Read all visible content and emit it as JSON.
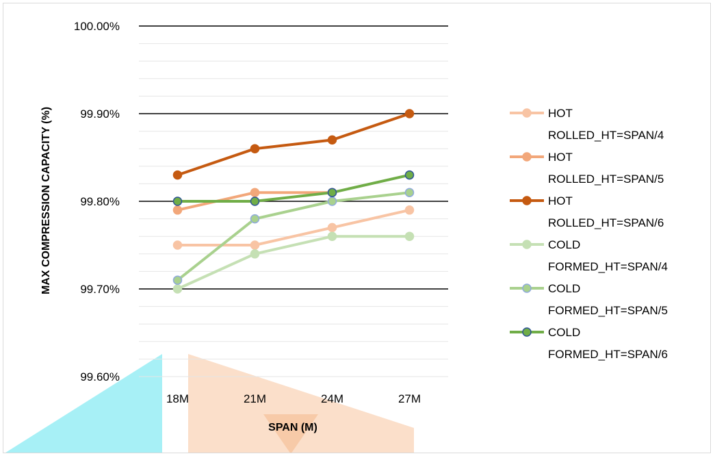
{
  "chart_data": {
    "type": "line",
    "title": "",
    "xlabel": "SPAN (M)",
    "ylabel": "MAX  COMPRESSION CAPACITY (%)",
    "categories": [
      "18M",
      "21M",
      "24M",
      "27M"
    ],
    "ylim": [
      99.6,
      100.0
    ],
    "ytick_values": [
      99.6,
      99.7,
      99.8,
      99.9,
      100.0
    ],
    "yticks": [
      "99.60%",
      "99.70%",
      "99.80%",
      "99.90%",
      "100.00%"
    ],
    "grid": "major and minor horizontal",
    "legend_position": "right",
    "series": [
      {
        "name": "HOT ROLLED_HT=SPAN/4",
        "legend_lines": [
          "HOT",
          "ROLLED_HT=SPAN/4"
        ],
        "values": [
          99.75,
          99.75,
          99.77,
          99.79
        ],
        "color": "#f8c4a4",
        "marker_edge": "#f8c4a4"
      },
      {
        "name": "HOT ROLLED_HT=SPAN/5",
        "legend_lines": [
          "HOT",
          "ROLLED_HT=SPAN/5"
        ],
        "values": [
          99.79,
          99.81,
          99.81,
          null
        ],
        "color": "#f2a77a",
        "marker_edge": "#f2a77a"
      },
      {
        "name": "HOT ROLLED_HT=SPAN/6",
        "legend_lines": [
          "HOT",
          "ROLLED_HT=SPAN/6"
        ],
        "values": [
          99.83,
          99.86,
          99.87,
          99.9
        ],
        "color": "#c55a11",
        "marker_edge": "#c55a11"
      },
      {
        "name": "COLD FORMED_HT=SPAN/4",
        "legend_lines": [
          "COLD",
          "FORMED_HT=SPAN/4"
        ],
        "values": [
          99.7,
          99.74,
          99.76,
          99.76
        ],
        "color": "#c5e0b4",
        "marker_edge": "#c5e0b4"
      },
      {
        "name": "COLD FORMED_HT=SPAN/5",
        "legend_lines": [
          "COLD",
          "FORMED_HT=SPAN/5"
        ],
        "values": [
          99.71,
          99.78,
          99.8,
          99.81
        ],
        "color": "#a9d18e",
        "marker_edge": "#8faadc"
      },
      {
        "name": "COLD FORMED_HT=SPAN/6",
        "legend_lines": [
          "COLD",
          "FORMED_HT=SPAN/6"
        ],
        "values": [
          99.8,
          99.8,
          99.81,
          99.83
        ],
        "color": "#70ad47",
        "marker_edge": "#2f5597"
      }
    ]
  }
}
